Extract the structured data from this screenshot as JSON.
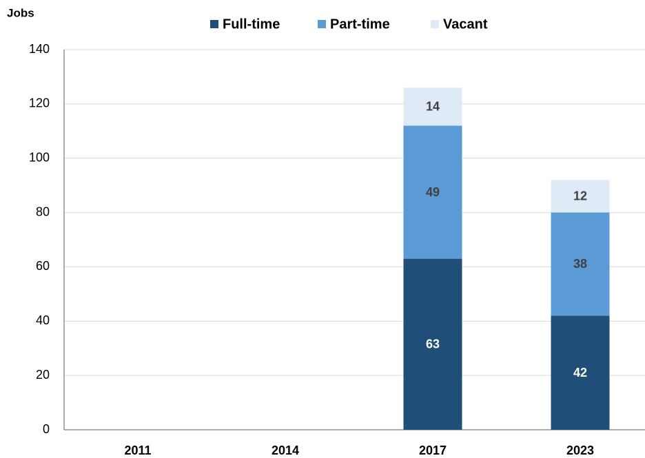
{
  "chart_data": {
    "type": "stacked_bar",
    "y_label": "Jobs",
    "categories": [
      "2011",
      "2014",
      "2017",
      "2023"
    ],
    "series": [
      {
        "name": "Full-time",
        "color": "#1f4e79",
        "label_color": "#ffffff",
        "values": [
          null,
          null,
          63,
          42
        ]
      },
      {
        "name": "Part-time",
        "color": "#5b9bd5",
        "label_color": "#404040",
        "values": [
          null,
          null,
          49,
          38
        ]
      },
      {
        "name": "Vacant",
        "color": "#deebf7",
        "label_color": "#404040",
        "values": [
          null,
          null,
          14,
          12
        ]
      }
    ],
    "ylim": [
      0,
      140
    ],
    "yticks": [
      0,
      20,
      40,
      60,
      80,
      100,
      120,
      140
    ],
    "grid": true,
    "legend": "top"
  }
}
